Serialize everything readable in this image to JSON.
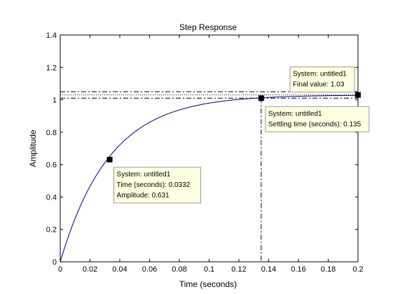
{
  "chart_data": {
    "type": "line",
    "title": "Step Response",
    "xlabel": "Time (seconds)",
    "ylabel": "Amplitude",
    "xlim": [
      0,
      0.2
    ],
    "ylim": [
      0,
      1.4
    ],
    "xticks": [
      "0",
      "0.02",
      "0.04",
      "0.06",
      "0.08",
      "0.1",
      "0.12",
      "0.14",
      "0.16",
      "0.18",
      "0.2"
    ],
    "yticks": [
      "0",
      "0.2",
      "0.4",
      "0.6",
      "0.8",
      "1",
      "1.2",
      "1.4"
    ],
    "series": [
      {
        "system": "untitled1",
        "final_value": 1.03,
        "time_constant": 0.0332,
        "t_end": 0.2
      }
    ],
    "settling_band": [
      1.01,
      1.05
    ],
    "settling_time": 0.135,
    "colors": {
      "curve": "#00007f",
      "reference": "#000000",
      "tip_bg": "#ffffe1"
    },
    "annotations": [
      {
        "kind": "rise",
        "x": 0.0332,
        "y": 0.631,
        "lines": [
          "System: untitled1",
          "Time (seconds): 0.0332",
          "Amplitude: 0.631"
        ]
      },
      {
        "kind": "settling",
        "x": 0.135,
        "y": 1.01,
        "lines": [
          "System: untitled1",
          "Settling time (seconds): 0.135"
        ]
      },
      {
        "kind": "final",
        "x": 0.2,
        "y": 1.03,
        "lines": [
          "System: untitled1",
          "Final value: 1.03"
        ]
      }
    ]
  }
}
